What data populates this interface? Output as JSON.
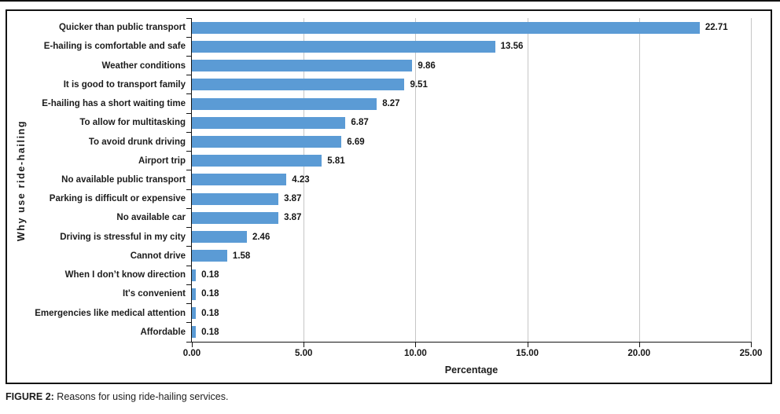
{
  "chart_data": {
    "type": "bar",
    "orientation": "horizontal",
    "categories": [
      "Quicker than public transport",
      "E-hailing is comfortable and safe",
      "Weather conditions",
      "It is good to transport family",
      "E-hailing has a short waiting time",
      "To allow for multitasking",
      "To avoid drunk driving",
      "Airport trip",
      "No available public transport",
      "Parking is difficult or expensive",
      "No available car",
      "Driving is stressful in my city",
      "Cannot drive",
      "When I don’t know direction",
      "It's convenient",
      "Emergencies like medical attention",
      "Affordable"
    ],
    "values": [
      22.71,
      13.56,
      9.86,
      9.51,
      8.27,
      6.87,
      6.69,
      5.81,
      4.23,
      3.87,
      3.87,
      2.46,
      1.58,
      0.18,
      0.18,
      0.18,
      0.18
    ],
    "value_labels": [
      "22.71",
      "13.56",
      "9.86",
      "9.51",
      "8.27",
      "6.87",
      "6.69",
      "5.81",
      "4.23",
      "3.87",
      "3.87",
      "2.46",
      "1.58",
      "0.18",
      "0.18",
      "0.18",
      "0.18"
    ],
    "xlabel": "Percentage",
    "ylabel": "Why use ride-hailing",
    "xlim": [
      0,
      25
    ],
    "x_ticks": [
      {
        "value": 0,
        "label": "0.00"
      },
      {
        "value": 5,
        "label": "5.00"
      },
      {
        "value": 10,
        "label": "10.00"
      },
      {
        "value": 15,
        "label": "15.00"
      },
      {
        "value": 20,
        "label": "20.00"
      },
      {
        "value": 25,
        "label": "25.00"
      }
    ],
    "grid": true,
    "legend": "none",
    "bar_color": "#5b9bd5",
    "gridline_color": "#c6c6c6",
    "axis_color": "#141414"
  },
  "caption": {
    "label": "FIGURE 2:",
    "text": " Reasons for using ride-hailing services."
  }
}
